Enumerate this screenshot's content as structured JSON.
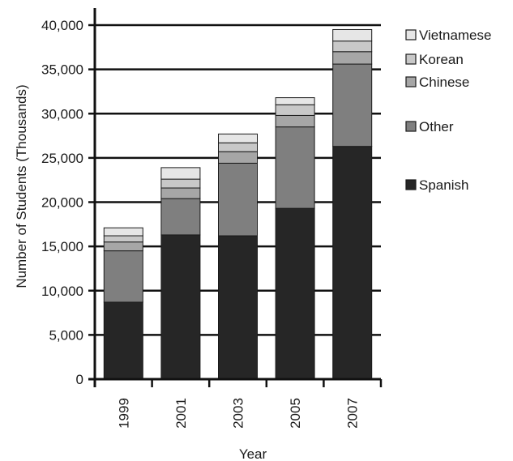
{
  "chart_data": {
    "type": "bar",
    "stacked": true,
    "categories": [
      "1999",
      "2001",
      "2003",
      "2005",
      "2007"
    ],
    "series": [
      {
        "name": "Spanish",
        "color": "#262626",
        "values": [
          8700,
          16300,
          16200,
          19300,
          26300
        ]
      },
      {
        "name": "Other",
        "color": "#7f7f7f",
        "values": [
          5800,
          4100,
          8200,
          9200,
          9300
        ]
      },
      {
        "name": "Chinese",
        "color": "#a6a6a6",
        "values": [
          1000,
          1200,
          1300,
          1300,
          1400
        ]
      },
      {
        "name": "Korean",
        "color": "#c8c8c8",
        "values": [
          700,
          1000,
          1000,
          1200,
          1200
        ]
      },
      {
        "name": "Vietnamese",
        "color": "#e6e6e6",
        "values": [
          900,
          1300,
          1000,
          800,
          1300
        ]
      }
    ],
    "xlabel": "Year",
    "ylabel": "Number of Students (Thousands)",
    "ylim": [
      0,
      40000
    ],
    "yticks": [
      0,
      5000,
      10000,
      15000,
      20000,
      25000,
      30000,
      35000,
      40000
    ],
    "ytick_labels": [
      "0",
      "5,000",
      "10,000",
      "15,000",
      "20,000",
      "25,000",
      "30,000",
      "35,000",
      "40,000"
    ],
    "grid": true,
    "legend_position": "right",
    "legend_order": [
      "Vietnamese",
      "Korean",
      "Chinese",
      "Other",
      "Spanish"
    ]
  }
}
